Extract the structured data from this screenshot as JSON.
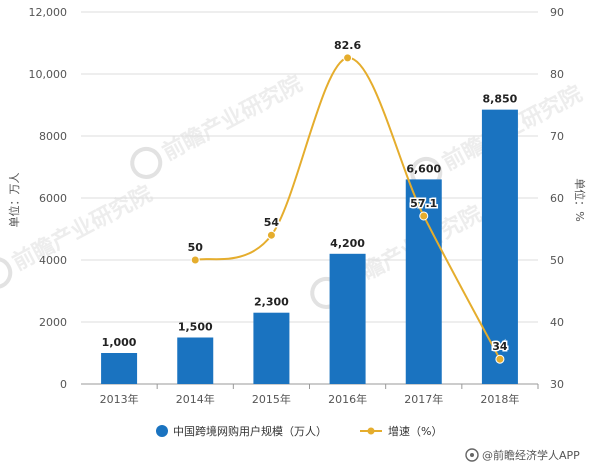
{
  "chart_data": {
    "type": "bar",
    "categories": [
      "2013年",
      "2014年",
      "2015年",
      "2016年",
      "2017年",
      "2018年"
    ],
    "series": [
      {
        "name": "中国跨境网购用户规模（万人）",
        "type": "bar",
        "axis": "left",
        "values": [
          1000,
          1500,
          2300,
          4200,
          6600,
          8850
        ],
        "labels": [
          "1,000",
          "1,500",
          "2,300",
          "4,200",
          "6,600",
          "8,850"
        ],
        "color": "#1a73c0"
      },
      {
        "name": "增速（%）",
        "type": "line",
        "axis": "right",
        "values": [
          null,
          50,
          54,
          82.6,
          57.1,
          34
        ],
        "labels": [
          "",
          "50",
          "54",
          "82.6",
          "57.1",
          "34"
        ],
        "color": "#e5ad2d"
      }
    ],
    "y_left": {
      "label": "单位：万人",
      "range": [
        0,
        12000
      ],
      "ticks": [
        0,
        2000,
        4000,
        6000,
        8000,
        10000,
        12000
      ],
      "tick_labels": [
        "0",
        "2000",
        "4000",
        "6000",
        "8000",
        "10,000",
        "12,000"
      ]
    },
    "y_right": {
      "label": "单位：%",
      "range": [
        30,
        90
      ],
      "ticks": [
        30,
        40,
        50,
        60,
        70,
        80,
        90
      ],
      "tick_labels": [
        "30",
        "40",
        "50",
        "60",
        "70",
        "80",
        "90"
      ]
    },
    "grid": true,
    "legend_position": "bottom"
  },
  "watermark": {
    "text": "前瞻产业研究院"
  },
  "source": {
    "text": "@前瞻经济学人APP"
  }
}
